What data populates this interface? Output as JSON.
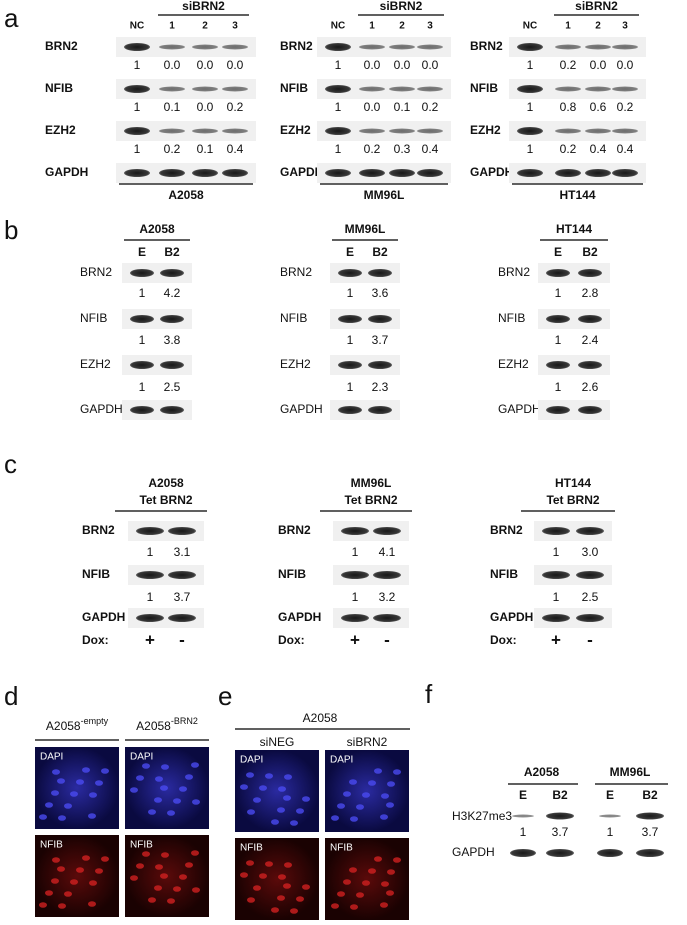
{
  "panel_a": {
    "label": "a",
    "blots": [
      {
        "group": "siBRN2",
        "lanes": [
          "NC",
          "1",
          "2",
          "3"
        ],
        "rows": [
          {
            "name": "BRN2",
            "values": [
              "1",
              "0.0",
              "0.0",
              "0.0"
            ]
          },
          {
            "name": "NFIB",
            "values": [
              "1",
              "0.1",
              "0.0",
              "0.2"
            ]
          },
          {
            "name": "EZH2",
            "values": [
              "1",
              "0.2",
              "0.1",
              "0.4"
            ]
          },
          {
            "name": "GAPDH"
          }
        ],
        "cell_line": "A2058"
      },
      {
        "group": "siBRN2",
        "lanes": [
          "NC",
          "1",
          "2",
          "3"
        ],
        "rows": [
          {
            "name": "BRN2",
            "values": [
              "1",
              "0.0",
              "0.0",
              "0.0"
            ]
          },
          {
            "name": "NFIB",
            "values": [
              "1",
              "0.0",
              "0.1",
              "0.2"
            ]
          },
          {
            "name": "EZH2",
            "values": [
              "1",
              "0.2",
              "0.3",
              "0.4"
            ]
          },
          {
            "name": "GAPDH"
          }
        ],
        "cell_line": "MM96L"
      },
      {
        "group": "siBRN2",
        "lanes": [
          "NC",
          "1",
          "2",
          "3"
        ],
        "rows": [
          {
            "name": "BRN2",
            "values": [
              "1",
              "0.2",
              "0.0",
              "0.0"
            ]
          },
          {
            "name": "NFIB",
            "values": [
              "1",
              "0.8",
              "0.6",
              "0.2"
            ]
          },
          {
            "name": "EZH2",
            "values": [
              "1",
              "0.2",
              "0.4",
              "0.4"
            ]
          },
          {
            "name": "GAPDH"
          }
        ],
        "cell_line": "HT144"
      }
    ]
  },
  "panel_b": {
    "label": "b",
    "blots": [
      {
        "cell_line": "A2058",
        "lanes": [
          "E",
          "B2"
        ],
        "rows": [
          {
            "name": "BRN2",
            "values": [
              "1",
              "4.2"
            ]
          },
          {
            "name": "NFIB",
            "values": [
              "1",
              "3.8"
            ]
          },
          {
            "name": "EZH2",
            "values": [
              "1",
              "2.5"
            ]
          },
          {
            "name": "GAPDH"
          }
        ]
      },
      {
        "cell_line": "MM96L",
        "lanes": [
          "E",
          "B2"
        ],
        "rows": [
          {
            "name": "BRN2",
            "values": [
              "1",
              "3.6"
            ]
          },
          {
            "name": "NFIB",
            "values": [
              "1",
              "3.7"
            ]
          },
          {
            "name": "EZH2",
            "values": [
              "1",
              "2.3"
            ]
          },
          {
            "name": "GAPDH"
          }
        ]
      },
      {
        "cell_line": "HT144",
        "lanes": [
          "E",
          "B2"
        ],
        "rows": [
          {
            "name": "BRN2",
            "values": [
              "1",
              "2.8"
            ]
          },
          {
            "name": "NFIB",
            "values": [
              "1",
              "2.4"
            ]
          },
          {
            "name": "EZH2",
            "values": [
              "1",
              "2.6"
            ]
          },
          {
            "name": "GAPDH"
          }
        ]
      }
    ]
  },
  "panel_c": {
    "label": "c",
    "blots": [
      {
        "cell_line": "A2058",
        "subtitle": "Tet BRN2",
        "lane_title": "Dox:",
        "lanes": [
          "+",
          "-"
        ],
        "rows": [
          {
            "name": "BRN2",
            "values": [
              "1",
              "3.1"
            ]
          },
          {
            "name": "NFIB",
            "values": [
              "1",
              "3.7"
            ]
          },
          {
            "name": "GAPDH"
          }
        ]
      },
      {
        "cell_line": "MM96L",
        "subtitle": "Tet BRN2",
        "lane_title": "Dox:",
        "lanes": [
          "+",
          "-"
        ],
        "rows": [
          {
            "name": "BRN2",
            "values": [
              "1",
              "4.1"
            ]
          },
          {
            "name": "NFIB",
            "values": [
              "1",
              "3.2"
            ]
          },
          {
            "name": "GAPDH"
          }
        ]
      },
      {
        "cell_line": "HT144",
        "subtitle": "Tet BRN2",
        "lane_title": "Dox:",
        "lanes": [
          "+",
          "-"
        ],
        "rows": [
          {
            "name": "BRN2",
            "values": [
              "1",
              "3.0"
            ]
          },
          {
            "name": "NFIB",
            "values": [
              "1",
              "2.5"
            ]
          },
          {
            "name": "GAPDH"
          }
        ]
      }
    ]
  },
  "panel_d": {
    "label": "d",
    "columns": [
      {
        "name": "A2058",
        "superscript": "-empty",
        "stains": [
          "DAPI",
          "NFIB"
        ]
      },
      {
        "name": "A2058",
        "superscript": "-BRN2",
        "stains": [
          "DAPI",
          "NFIB"
        ]
      }
    ]
  },
  "panel_e": {
    "label": "e",
    "title": "A2058",
    "columns": [
      {
        "name": "siNEG",
        "stains": [
          "DAPI",
          "NFIB"
        ]
      },
      {
        "name": "siBRN2",
        "stains": [
          "DAPI",
          "NFIB"
        ]
      }
    ]
  },
  "panel_f": {
    "label": "f",
    "rows": [
      "H3K27me3",
      "GAPDH"
    ],
    "groups": [
      {
        "cell_line": "A2058",
        "lanes": [
          "E",
          "B2"
        ],
        "values": [
          "1",
          "3.7"
        ]
      },
      {
        "cell_line": "MM96L",
        "lanes": [
          "E",
          "B2"
        ],
        "values": [
          "1",
          "3.7"
        ]
      }
    ]
  }
}
